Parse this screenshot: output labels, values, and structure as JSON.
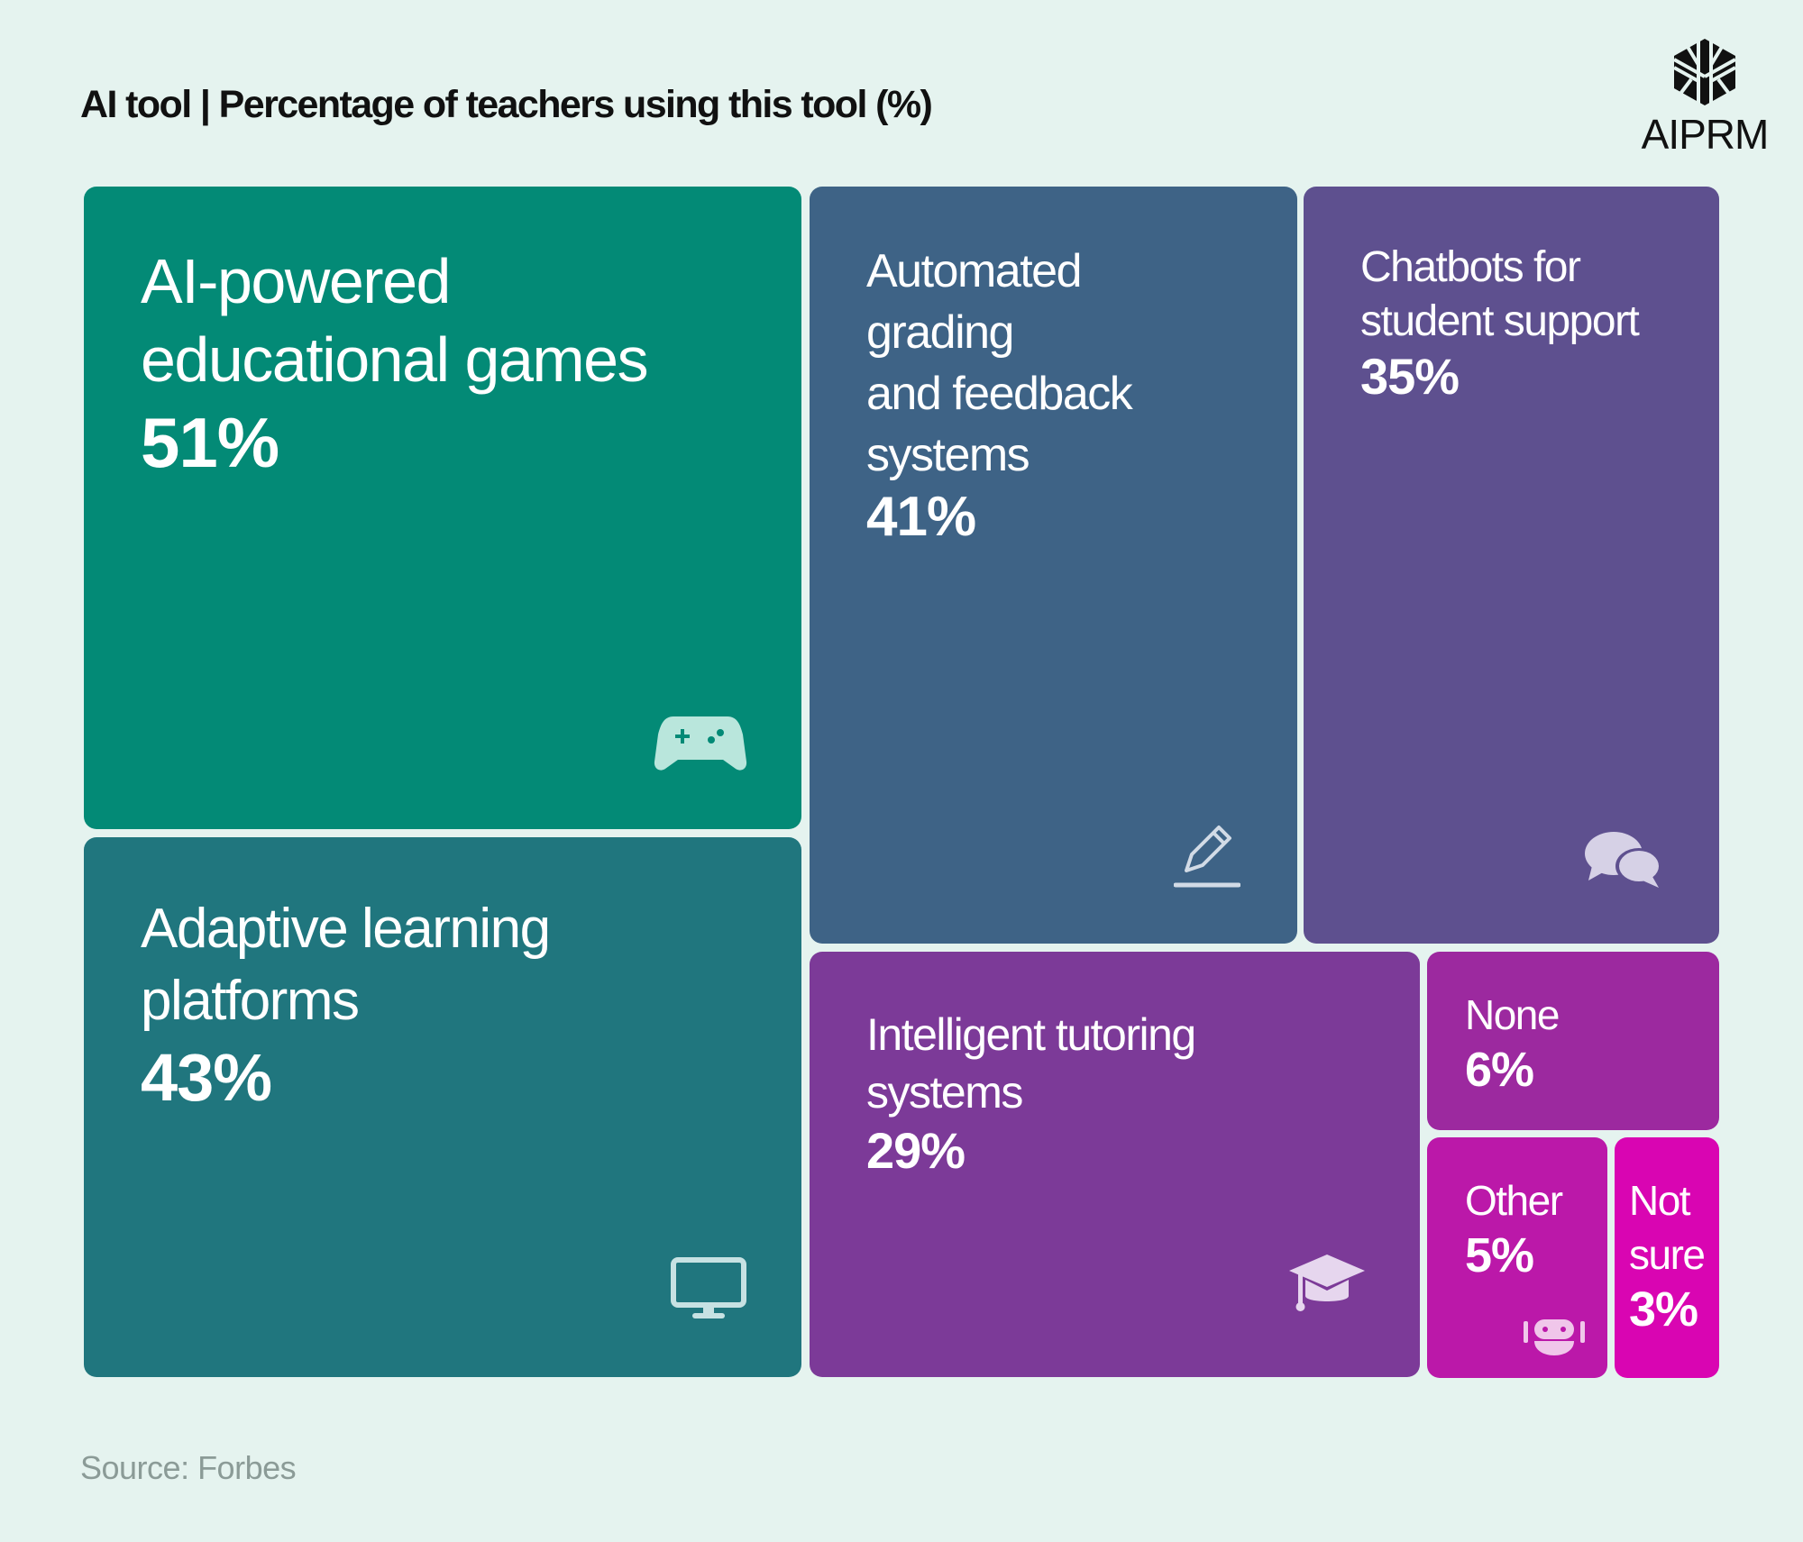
{
  "header": {
    "title": "AI tool | Percentage of teachers using this tool (%)"
  },
  "logo": {
    "text": "AIPRM"
  },
  "footer": {
    "source": "Source: Forbes"
  },
  "chart_data": {
    "type": "treemap",
    "title": "AI tool | Percentage of teachers using this tool (%)",
    "items": [
      {
        "label_lines": [
          "AI-powered",
          "educational games"
        ],
        "value": 51,
        "value_label": "51%",
        "color": "#038a76",
        "icon": "game-controller-icon"
      },
      {
        "label_lines": [
          "Adaptive learning",
          "platforms"
        ],
        "value": 43,
        "value_label": "43%",
        "color": "#20767e",
        "icon": "monitor-icon"
      },
      {
        "label_lines": [
          "Automated",
          "grading",
          "and feedback",
          "systems"
        ],
        "value": 41,
        "value_label": "41%",
        "color": "#3e6386",
        "icon": "pencil-icon"
      },
      {
        "label_lines": [
          "Chatbots for",
          "student support"
        ],
        "value": 35,
        "value_label": "35%",
        "color": "#5e508f",
        "icon": "chat-bubbles-icon"
      },
      {
        "label_lines": [
          "Intelligent tutoring",
          "systems"
        ],
        "value": 29,
        "value_label": "29%",
        "color": "#7c3a98",
        "icon": "graduation-cap-icon"
      },
      {
        "label_lines": [
          "None"
        ],
        "value": 6,
        "value_label": "6%",
        "color": "#9c299f",
        "icon": ""
      },
      {
        "label_lines": [
          "Other"
        ],
        "value": 5,
        "value_label": "5%",
        "color": "#bb18a9",
        "icon": "robot-icon"
      },
      {
        "label_lines": [
          "Not",
          "sure"
        ],
        "value": 3,
        "value_label": "3%",
        "color": "#d905b2",
        "icon": ""
      }
    ]
  }
}
